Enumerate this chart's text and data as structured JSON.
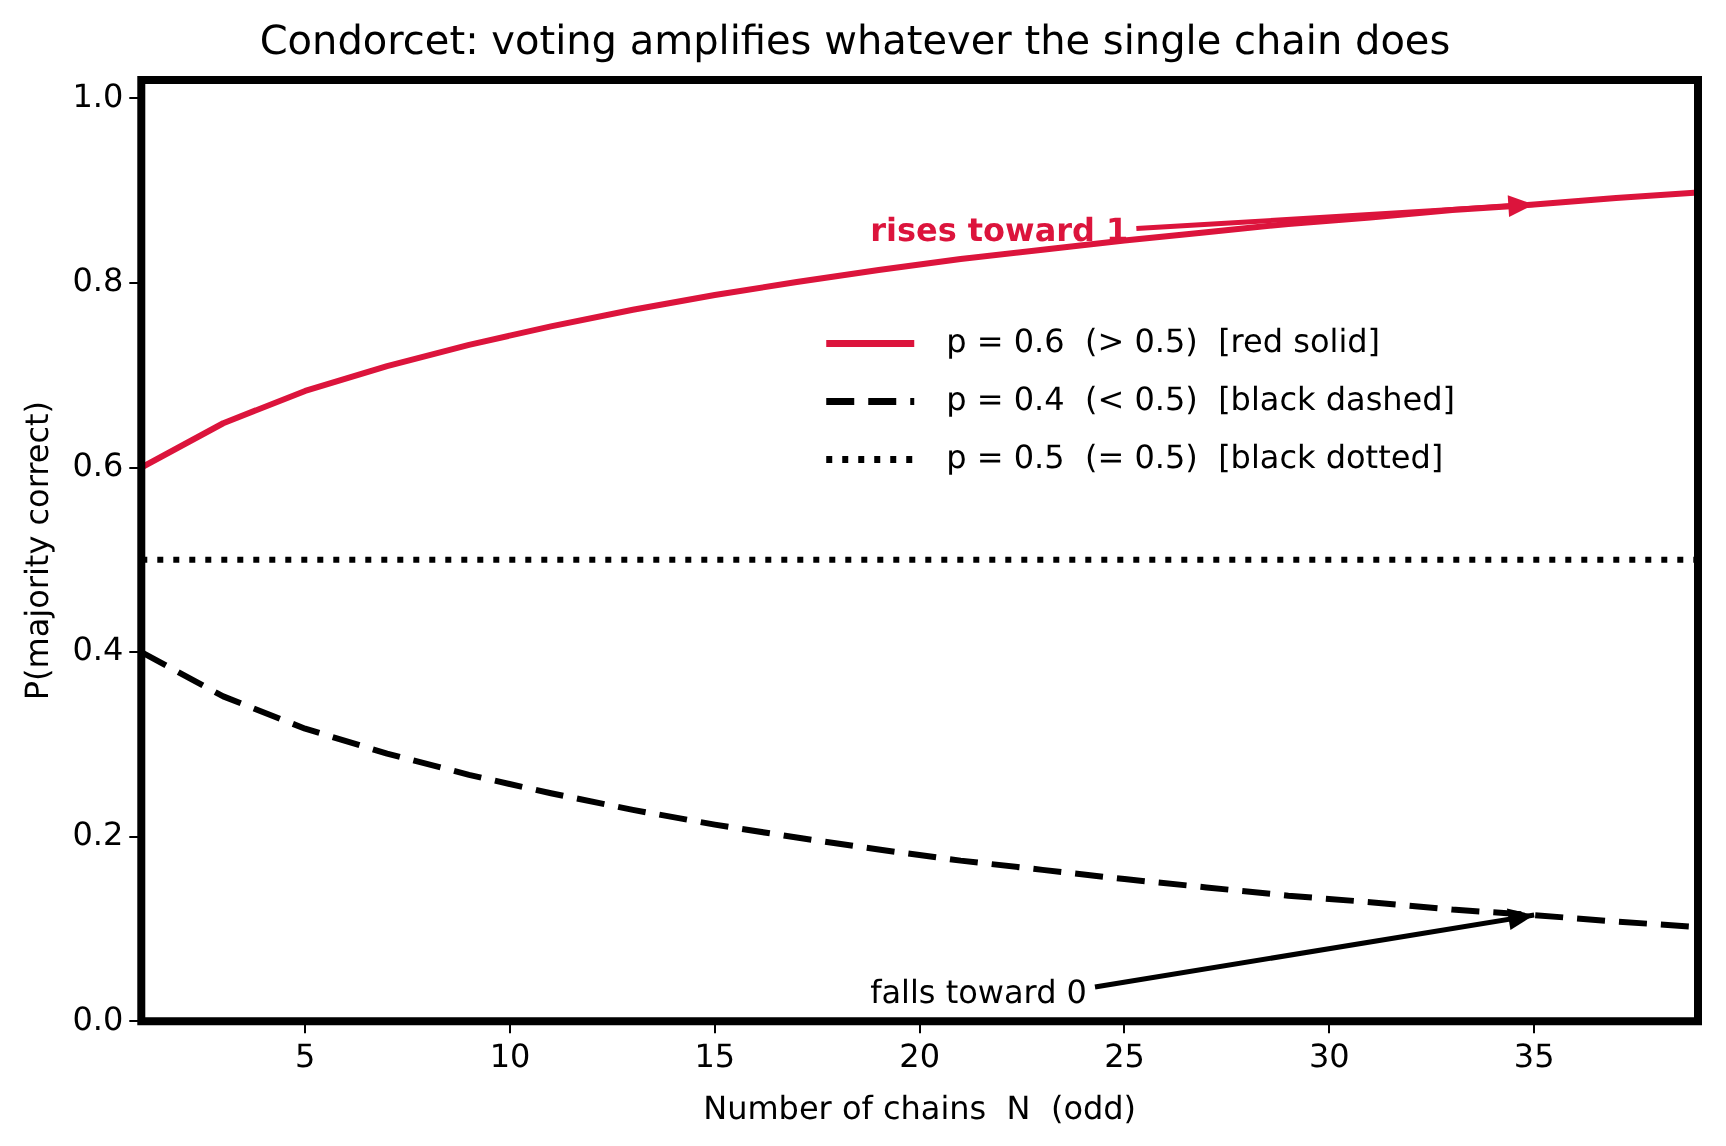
{
  "chart_data": {
    "type": "line",
    "title": "Condorcet: voting amplifies whatever the single chain does",
    "xlabel": "Number of chains  N  (odd)",
    "ylabel": "P(majority correct)",
    "x": [
      1,
      3,
      5,
      7,
      9,
      11,
      13,
      15,
      17,
      19,
      21,
      23,
      25,
      27,
      29,
      31,
      33,
      35,
      37,
      39
    ],
    "series": [
      {
        "name": "p = 0.6  (> 0.5)  [red solid]",
        "color": "#dc143c",
        "line_style": "solid",
        "values": [
          0.6,
          0.648,
          0.683,
          0.71,
          0.733,
          0.753,
          0.771,
          0.787,
          0.801,
          0.814,
          0.826,
          0.836,
          0.846,
          0.855,
          0.864,
          0.871,
          0.879,
          0.885,
          0.892,
          0.898
        ]
      },
      {
        "name": "p = 0.4  (< 0.5)  [black dashed]",
        "color": "#000000",
        "line_style": "dashed",
        "values": [
          0.4,
          0.352,
          0.317,
          0.29,
          0.267,
          0.247,
          0.229,
          0.213,
          0.199,
          0.186,
          0.174,
          0.164,
          0.154,
          0.145,
          0.136,
          0.129,
          0.121,
          0.115,
          0.108,
          0.102
        ]
      },
      {
        "name": "p = 0.5  (= 0.5)  [black dotted]",
        "color": "#000000",
        "line_style": "dotted",
        "values": [
          0.5,
          0.5,
          0.5,
          0.5,
          0.5,
          0.5,
          0.5,
          0.5,
          0.5,
          0.5,
          0.5,
          0.5,
          0.5,
          0.5,
          0.5,
          0.5,
          0.5,
          0.5,
          0.5,
          0.5
        ]
      }
    ],
    "annotations": [
      {
        "text": "rises toward 1",
        "x": 35,
        "y": 0.885
      },
      {
        "text": "falls toward 0",
        "x": 35,
        "y": 0.115
      }
    ],
    "xlim": [
      1,
      39
    ],
    "xticks": [
      5,
      10,
      15,
      20,
      25,
      30,
      35
    ],
    "ylim": [
      0,
      1.02
    ],
    "yticks": [
      {
        "value": 0,
        "label": "0.0"
      },
      {
        "value": 0.2,
        "label": "0.2"
      },
      {
        "value": 0.4,
        "label": "0.4"
      },
      {
        "value": 0.6,
        "label": "0.6"
      },
      {
        "value": 0.8,
        "label": "0.8"
      },
      {
        "value": 1,
        "label": "1.0"
      }
    ],
    "grid": false,
    "legend": "center right",
    "marker": "none"
  }
}
